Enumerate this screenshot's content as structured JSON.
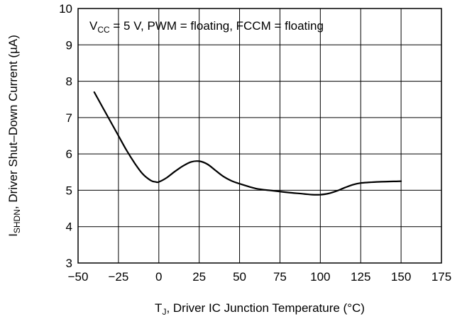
{
  "chart_data": {
    "type": "line",
    "annotation": {
      "prefix": "V",
      "sub": "CC",
      "suffix": " = 5 V, PWM = floating, FCCM = floating"
    },
    "xlabel": {
      "prefix": "T",
      "sub": "J",
      "suffix": ", Driver IC Junction Temperature (°C)"
    },
    "ylabel": {
      "prefix": "I",
      "sub": "SHDN",
      "suffix": ", Driver Shut–Down Current (µA)"
    },
    "xlim": [
      -50,
      175
    ],
    "ylim": [
      3,
      10
    ],
    "xticks": [
      -50,
      -25,
      0,
      25,
      50,
      75,
      100,
      125,
      150,
      175
    ],
    "xtick_labels": [
      "−50",
      "−25",
      "0",
      "25",
      "50",
      "75",
      "100",
      "125",
      "150",
      "175"
    ],
    "yticks": [
      3,
      4,
      5,
      6,
      7,
      8,
      9,
      10
    ],
    "ytick_labels": [
      "3",
      "4",
      "5",
      "6",
      "7",
      "8",
      "9",
      "10"
    ],
    "grid": true,
    "series": [
      {
        "x": [
          -40,
          -35,
          -30,
          -25,
          -20,
          -15,
          -10,
          -5,
          -2,
          0,
          5,
          10,
          15,
          20,
          25,
          30,
          35,
          40,
          45,
          50,
          60,
          70,
          80,
          90,
          95,
          100,
          105,
          110,
          115,
          120,
          125,
          135,
          150
        ],
        "y": [
          7.7,
          7.3,
          6.9,
          6.5,
          6.1,
          5.75,
          5.45,
          5.27,
          5.23,
          5.23,
          5.35,
          5.52,
          5.67,
          5.78,
          5.8,
          5.72,
          5.55,
          5.38,
          5.26,
          5.18,
          5.05,
          4.99,
          4.94,
          4.9,
          4.88,
          4.88,
          4.91,
          4.98,
          5.07,
          5.15,
          5.2,
          5.23,
          5.25
        ]
      }
    ]
  }
}
